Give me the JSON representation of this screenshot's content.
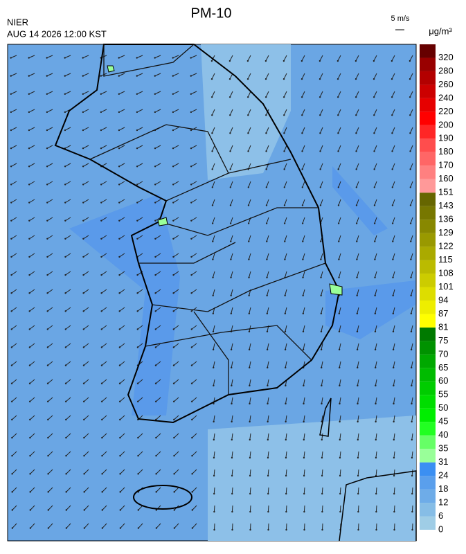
{
  "title": "PM-10",
  "agency": "NIER",
  "timestamp": "AUG 14 2026 12:00 KST",
  "wind_scale": "5 m/s",
  "unit": "μg/m³",
  "colorbar": {
    "labels": [
      0,
      6,
      12,
      18,
      24,
      31,
      35,
      40,
      45,
      50,
      55,
      60,
      65,
      70,
      75,
      81,
      87,
      94,
      101,
      108,
      115,
      122,
      129,
      136,
      143,
      151,
      160,
      170,
      180,
      190,
      200,
      220,
      240,
      260,
      280,
      320
    ],
    "colors": [
      "#9fcde6",
      "#86bde6",
      "#6eace8",
      "#5a9fec",
      "#3b8ff2",
      "#99ff99",
      "#66ff66",
      "#22ff22",
      "#00ee00",
      "#00dd00",
      "#00cc00",
      "#00bb00",
      "#00a800",
      "#009200",
      "#007a00",
      "#ffff00",
      "#eeee00",
      "#dddd00",
      "#cccc00",
      "#bbbb00",
      "#aaaa00",
      "#999900",
      "#888800",
      "#777700",
      "#666600",
      "#ff9999",
      "#ff8080",
      "#ff6666",
      "#ff4d4d",
      "#ff2626",
      "#ff0000",
      "#e60000",
      "#cc0000",
      "#b30000",
      "#990000",
      "#660000"
    ]
  }
}
